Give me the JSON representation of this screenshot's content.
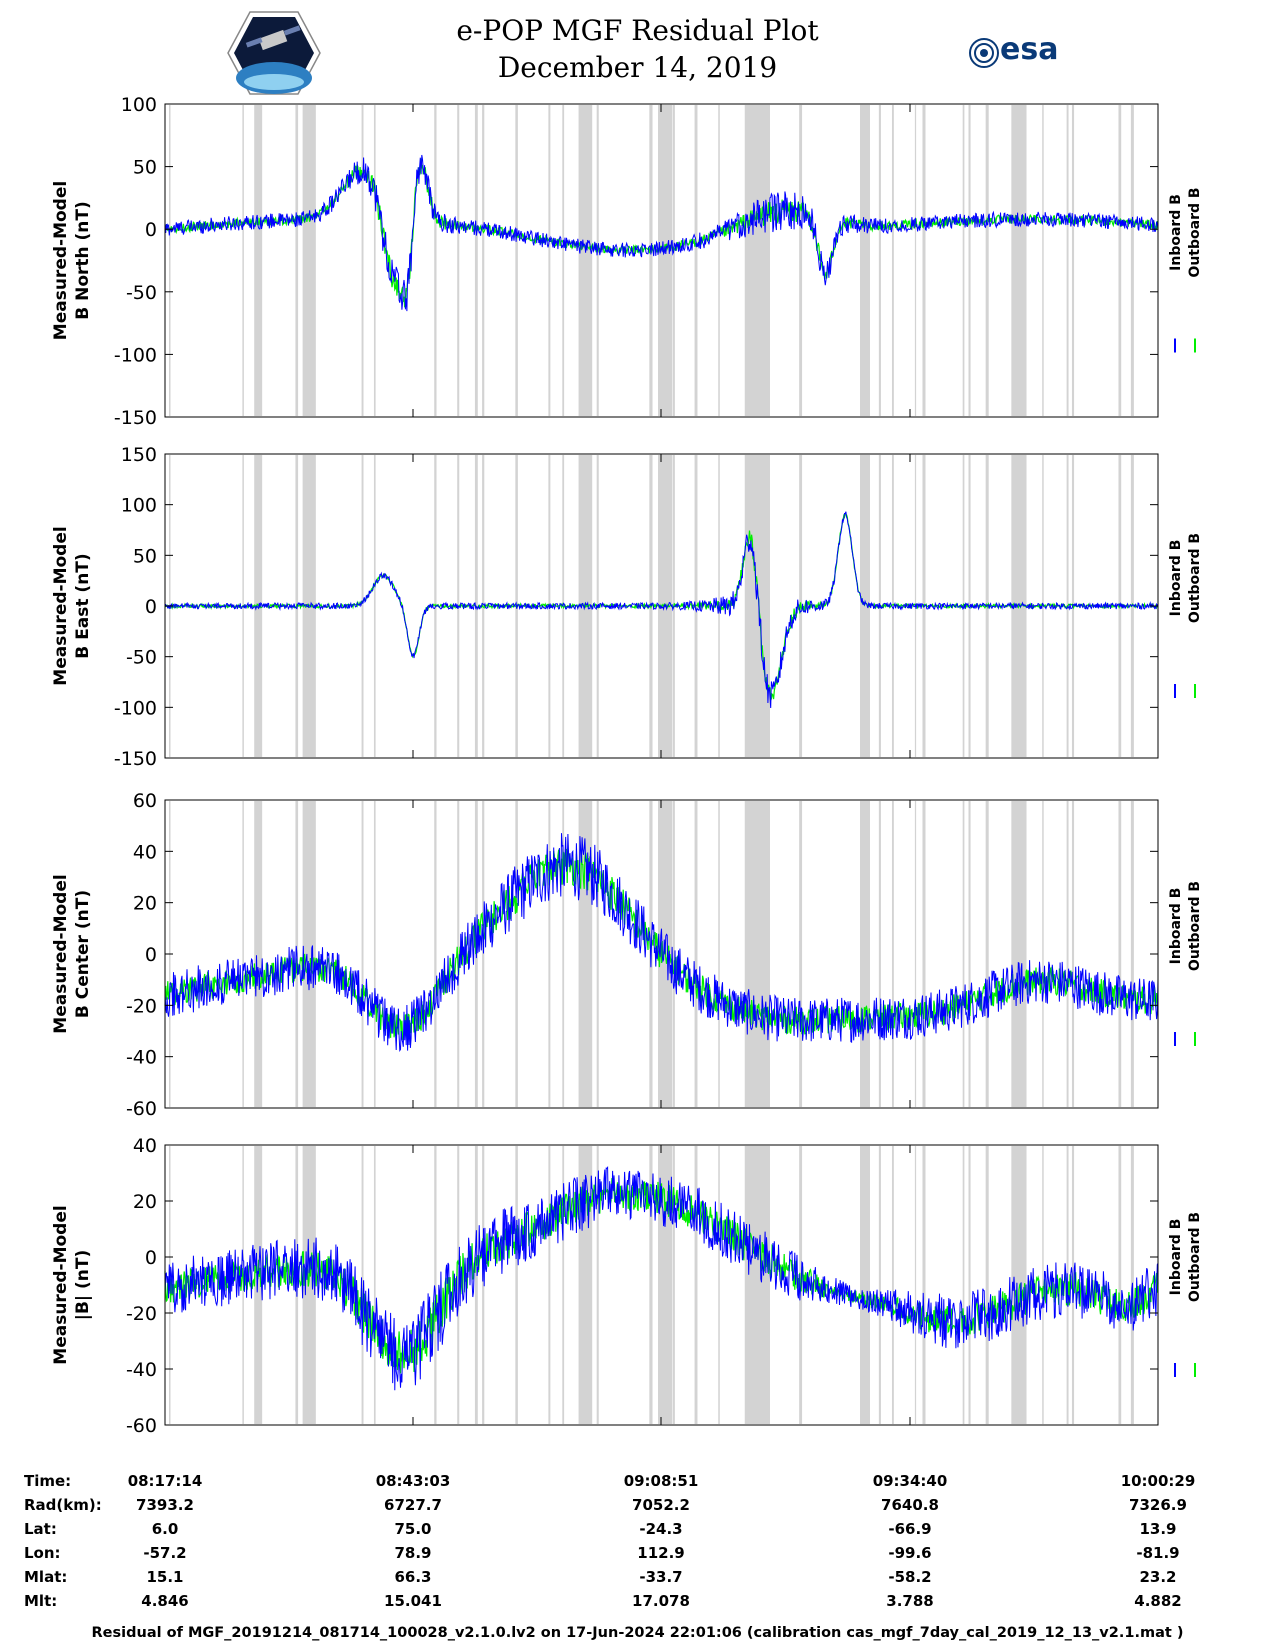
{
  "header": {
    "title_line1": "e-POP MGF Residual Plot",
    "title_line2": "December 14, 2019",
    "left_logo": "cassiope-mission-logo",
    "right_logo": "esa-logo",
    "right_logo_text": "esa"
  },
  "colors": {
    "inboard": "#0000ff",
    "outboard": "#00ee00",
    "gap_shading": "#d3d3d3"
  },
  "chart_data": [
    {
      "type": "line",
      "ylabel_line1": "Measured-Model",
      "ylabel_line2": "B North (nT)",
      "ylim": [
        -150,
        100
      ],
      "yticks": [
        "100",
        "50",
        "0",
        "-50",
        "-100",
        "-150"
      ],
      "legend": [
        "Inboard B",
        "Outboard B"
      ],
      "legend_placement": "right",
      "series": [
        {
          "name": "Inboard B"
        },
        {
          "name": "Outboard B"
        }
      ]
    },
    {
      "type": "line",
      "ylabel_line1": "Measured-Model",
      "ylabel_line2": "B East (nT)",
      "ylim": [
        -150,
        150
      ],
      "yticks": [
        "150",
        "100",
        "50",
        "0",
        "-50",
        "-100",
        "-150"
      ],
      "legend": [
        "Inboard B",
        "Outboard B"
      ],
      "legend_placement": "right",
      "series": [
        {
          "name": "Inboard B"
        },
        {
          "name": "Outboard B"
        }
      ]
    },
    {
      "type": "line",
      "ylabel_line1": "Measured-Model",
      "ylabel_line2": "B Center (nT)",
      "ylim": [
        -60,
        60
      ],
      "yticks": [
        "60",
        "40",
        "20",
        "0",
        "-20",
        "-40",
        "-60"
      ],
      "legend": [
        "Inboard B",
        "Outboard B"
      ],
      "legend_placement": "right",
      "series": [
        {
          "name": "Inboard B"
        },
        {
          "name": "Outboard B"
        }
      ]
    },
    {
      "type": "line",
      "ylabel_line1": "Measured-Model",
      "ylabel_line2": "|B| (nT)",
      "ylim": [
        -60,
        40
      ],
      "yticks": [
        "40",
        "20",
        "0",
        "-20",
        "-40",
        "-60"
      ],
      "legend": [
        "Inboard B",
        "Outboard B"
      ],
      "legend_placement": "right",
      "series": [
        {
          "name": "Inboard B"
        },
        {
          "name": "Outboard B"
        }
      ]
    }
  ],
  "ephemeris": {
    "labels": [
      "Time:",
      "Rad(km):",
      "Lat:",
      "Lon:",
      "Mlat:",
      "Mlt:"
    ],
    "columns": [
      {
        "time": "08:17:14",
        "rad": "7393.2",
        "lat": "6.0",
        "lon": "-57.2",
        "mlat": "15.1",
        "mlt": "4.846"
      },
      {
        "time": "08:43:03",
        "rad": "6727.7",
        "lat": "75.0",
        "lon": "78.9",
        "mlat": "66.3",
        "mlt": "15.041"
      },
      {
        "time": "09:08:51",
        "rad": "7052.2",
        "lat": "-24.3",
        "lon": "112.9",
        "mlat": "-33.7",
        "mlt": "17.078"
      },
      {
        "time": "09:34:40",
        "rad": "7640.8",
        "lat": "-66.9",
        "lon": "-99.6",
        "mlat": "-58.2",
        "mlt": "3.788"
      },
      {
        "time": "10:00:29",
        "rad": "7326.9",
        "lat": "13.9",
        "lon": "-81.9",
        "mlat": "23.2",
        "mlt": "4.882"
      }
    ]
  },
  "footer": "Residual of MGF_20191214_081714_100028_v2.1.0.lv2 on 17-Jun-2024 22:01:06 (calibration cas_mgf_7day_cal_2019_12_13_v2.1.mat )"
}
